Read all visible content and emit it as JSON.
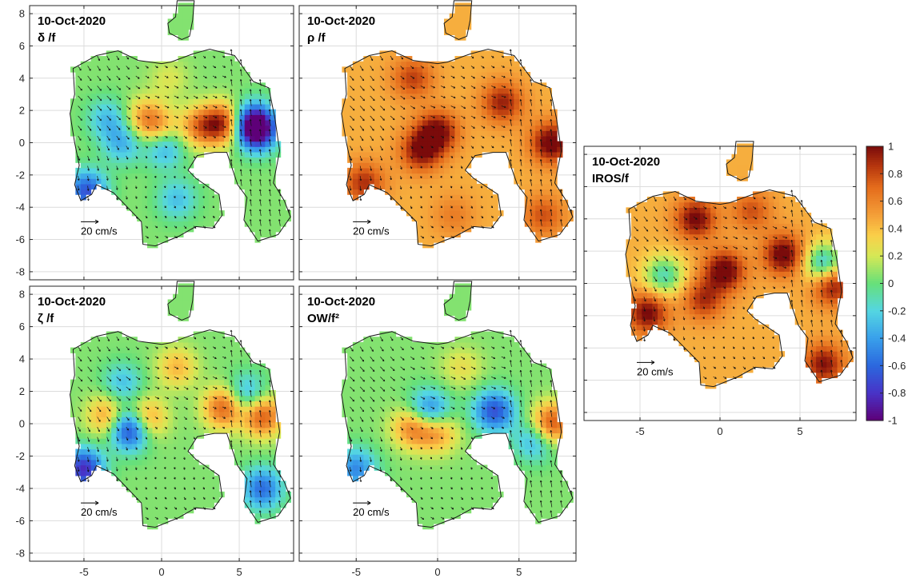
{
  "chart_data": [
    {
      "type": "heatmap",
      "title_date": "10-Oct-2020",
      "title_var": "δ /f",
      "x_ticks": [],
      "y_ticks": [
        "8",
        "6",
        "4",
        "2",
        "0",
        "-2",
        "-4",
        "-6",
        "-8"
      ],
      "xlim": [
        -8.5,
        8.5
      ],
      "ylim": [
        -8.5,
        8.5
      ],
      "grid": true,
      "scale_arrow_label": "20 cm/s",
      "blobs": [
        {
          "x": 4.0,
          "y": 1.2,
          "v": 0.85
        },
        {
          "x": 2.5,
          "y": 1.0,
          "v": 0.6
        },
        {
          "x": 5.8,
          "y": 1.2,
          "v": -0.7
        },
        {
          "x": 6.2,
          "y": 0.8,
          "v": -0.85
        },
        {
          "x": -4.8,
          "y": -3.0,
          "v": -0.7
        },
        {
          "x": -2.5,
          "y": 0.0,
          "v": -0.35
        },
        {
          "x": -3.5,
          "y": 1.5,
          "v": -0.3
        },
        {
          "x": 0.2,
          "y": -0.2,
          "v": -0.45
        },
        {
          "x": -1.0,
          "y": 1.5,
          "v": 0.5
        },
        {
          "x": 0.0,
          "y": 0.8,
          "v": 0.4
        },
        {
          "x": 1.0,
          "y": -3.5,
          "v": -0.3
        },
        {
          "x": 0.5,
          "y": 4.0,
          "v": 0.2
        }
      ]
    },
    {
      "type": "heatmap",
      "title_date": "10-Oct-2020",
      "title_var": "ρ /f",
      "x_ticks": [],
      "y_ticks": [],
      "xlim": [
        -8.5,
        8.5
      ],
      "ylim": [
        -8.5,
        8.5
      ],
      "grid": true,
      "scale_arrow_label": "20 cm/s",
      "blobs": [
        {
          "x": 7.0,
          "y": 0.0,
          "v": 0.9
        },
        {
          "x": 4.0,
          "y": 2.5,
          "v": 0.75
        },
        {
          "x": -1.5,
          "y": 4.0,
          "v": 0.65
        },
        {
          "x": -1.0,
          "y": -0.5,
          "v": 0.8
        },
        {
          "x": 0.0,
          "y": 0.7,
          "v": 0.85
        },
        {
          "x": -4.5,
          "y": -2.5,
          "v": 0.7
        },
        {
          "x": 6.5,
          "y": -4.5,
          "v": 0.6
        },
        {
          "x": 1.0,
          "y": -4.5,
          "v": 0.45
        }
      ]
    },
    {
      "type": "heatmap",
      "title_date": "10-Oct-2020",
      "title_var": "ζ /f",
      "x_ticks": [
        "-5",
        "0",
        "5"
      ],
      "y_ticks": [
        "8",
        "6",
        "4",
        "2",
        "0",
        "-2",
        "-4",
        "-6",
        "-8"
      ],
      "xlim": [
        -8.5,
        8.5
      ],
      "ylim": [
        -8.5,
        8.5
      ],
      "grid": true,
      "scale_arrow_label": "20 cm/s",
      "blobs": [
        {
          "x": 4.0,
          "y": 1.0,
          "v": 0.7
        },
        {
          "x": 6.5,
          "y": 0.5,
          "v": 0.75
        },
        {
          "x": -2.0,
          "y": -0.3,
          "v": -0.9
        },
        {
          "x": -1.0,
          "y": 0.3,
          "v": 0.6
        },
        {
          "x": -3.5,
          "y": 0.5,
          "v": 0.5
        },
        {
          "x": -5.0,
          "y": -2.8,
          "v": -0.85
        },
        {
          "x": 6.5,
          "y": -4.0,
          "v": -0.6
        },
        {
          "x": 5.5,
          "y": 1.8,
          "v": -0.4
        },
        {
          "x": -2.5,
          "y": 2.5,
          "v": -0.3
        },
        {
          "x": 1.0,
          "y": 3.5,
          "v": 0.4
        }
      ]
    },
    {
      "type": "heatmap",
      "title_date": "10-Oct-2020",
      "title_var": "OW/f²",
      "x_ticks": [
        "-5",
        "0",
        "5"
      ],
      "y_ticks": [],
      "xlim": [
        -8.5,
        8.5
      ],
      "ylim": [
        -8.5,
        8.5
      ],
      "grid": true,
      "scale_arrow_label": "20 cm/s",
      "blobs": [
        {
          "x": 7.0,
          "y": 0.0,
          "v": 0.8
        },
        {
          "x": 3.5,
          "y": 0.8,
          "v": -0.7
        },
        {
          "x": -0.5,
          "y": 0.8,
          "v": -0.6
        },
        {
          "x": -1.5,
          "y": -0.2,
          "v": 0.6
        },
        {
          "x": 0.0,
          "y": -0.5,
          "v": 0.5
        },
        {
          "x": -5.0,
          "y": -2.8,
          "v": -0.5
        },
        {
          "x": 6.0,
          "y": -1.0,
          "v": -0.4
        },
        {
          "x": 1.5,
          "y": 3.5,
          "v": 0.25
        }
      ]
    },
    {
      "type": "heatmap",
      "title_date": "10-Oct-2020",
      "title_var": "IROS/f",
      "x_ticks": [
        "-5",
        "0",
        "5"
      ],
      "y_ticks": [],
      "xlim": [
        -8.5,
        8.5
      ],
      "ylim": [
        -8.5,
        8.5
      ],
      "grid": true,
      "scale_arrow_label": "20 cm/s",
      "blobs": [
        {
          "x": 4.0,
          "y": 1.8,
          "v": 0.9
        },
        {
          "x": -1.5,
          "y": 4.0,
          "v": 0.85
        },
        {
          "x": 0.3,
          "y": 0.8,
          "v": 0.9
        },
        {
          "x": 7.0,
          "y": 0.0,
          "v": 0.9
        },
        {
          "x": -4.5,
          "y": -1.8,
          "v": 0.85
        },
        {
          "x": -1.0,
          "y": -1.0,
          "v": 0.7
        },
        {
          "x": 6.5,
          "y": 1.2,
          "v": -0.5
        },
        {
          "x": -3.5,
          "y": 0.5,
          "v": -0.3
        },
        {
          "x": 6.5,
          "y": -5.0,
          "v": 0.8
        },
        {
          "x": 2.0,
          "y": 4.5,
          "v": 0.6
        }
      ]
    }
  ],
  "colorbar": {
    "label_ticks": [
      "1",
      "0.8",
      "0.6",
      "0.4",
      "0.2",
      "0",
      "-0.2",
      "-0.4",
      "-0.6",
      "-0.8",
      "-1"
    ],
    "range": [
      -1,
      1
    ]
  }
}
